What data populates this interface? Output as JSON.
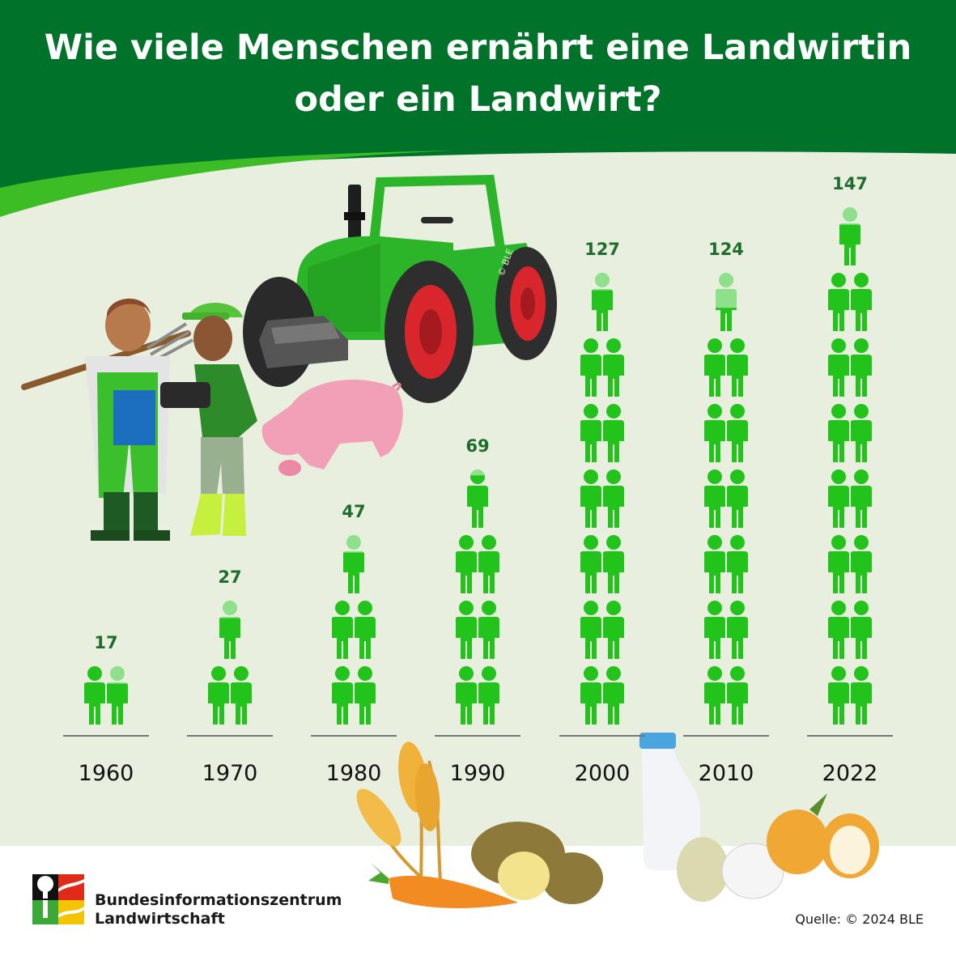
{
  "title_line1": "Wie viele Menschen ernährt eine Landwirtin",
  "title_line2": "oder ein Landwirt?",
  "source": "Quelle: © 2024 BLE",
  "organization_line1": "Bundesinformationszentrum",
  "organization_line2": "Landwirtschaft",
  "tractor_copyright": "© BLE",
  "colors": {
    "header": "#00722a",
    "panel": "#e9efdf",
    "figure": "#22c31a",
    "figure_partial": "#8fe08a",
    "value_label": "#1f6d2c",
    "baseline": "#777777"
  },
  "icons": [
    "tractor-illustration",
    "farmer-man-illustration",
    "farmer-woman-illustration",
    "pig-illustration",
    "wheat-illustration",
    "carrot-illustration",
    "potato-illustration",
    "milk-bottle-illustration",
    "egg-illustration",
    "onion-illustration",
    "bzl-logo",
    "person-icon"
  ],
  "chart_data": {
    "type": "bar",
    "title": "Wie viele Menschen ernährt eine Landwirtin oder ein Landwirt?",
    "categories": [
      "1960",
      "1970",
      "1980",
      "1990",
      "2000",
      "2010",
      "2022"
    ],
    "values": [
      17,
      27,
      47,
      69,
      127,
      124,
      147
    ],
    "value_labels": [
      "17",
      "27",
      "47",
      "69",
      "127",
      "124",
      "147"
    ],
    "unit_per_icon": 10,
    "xlabel": "",
    "ylabel": "",
    "grid": false,
    "legend": "none"
  }
}
